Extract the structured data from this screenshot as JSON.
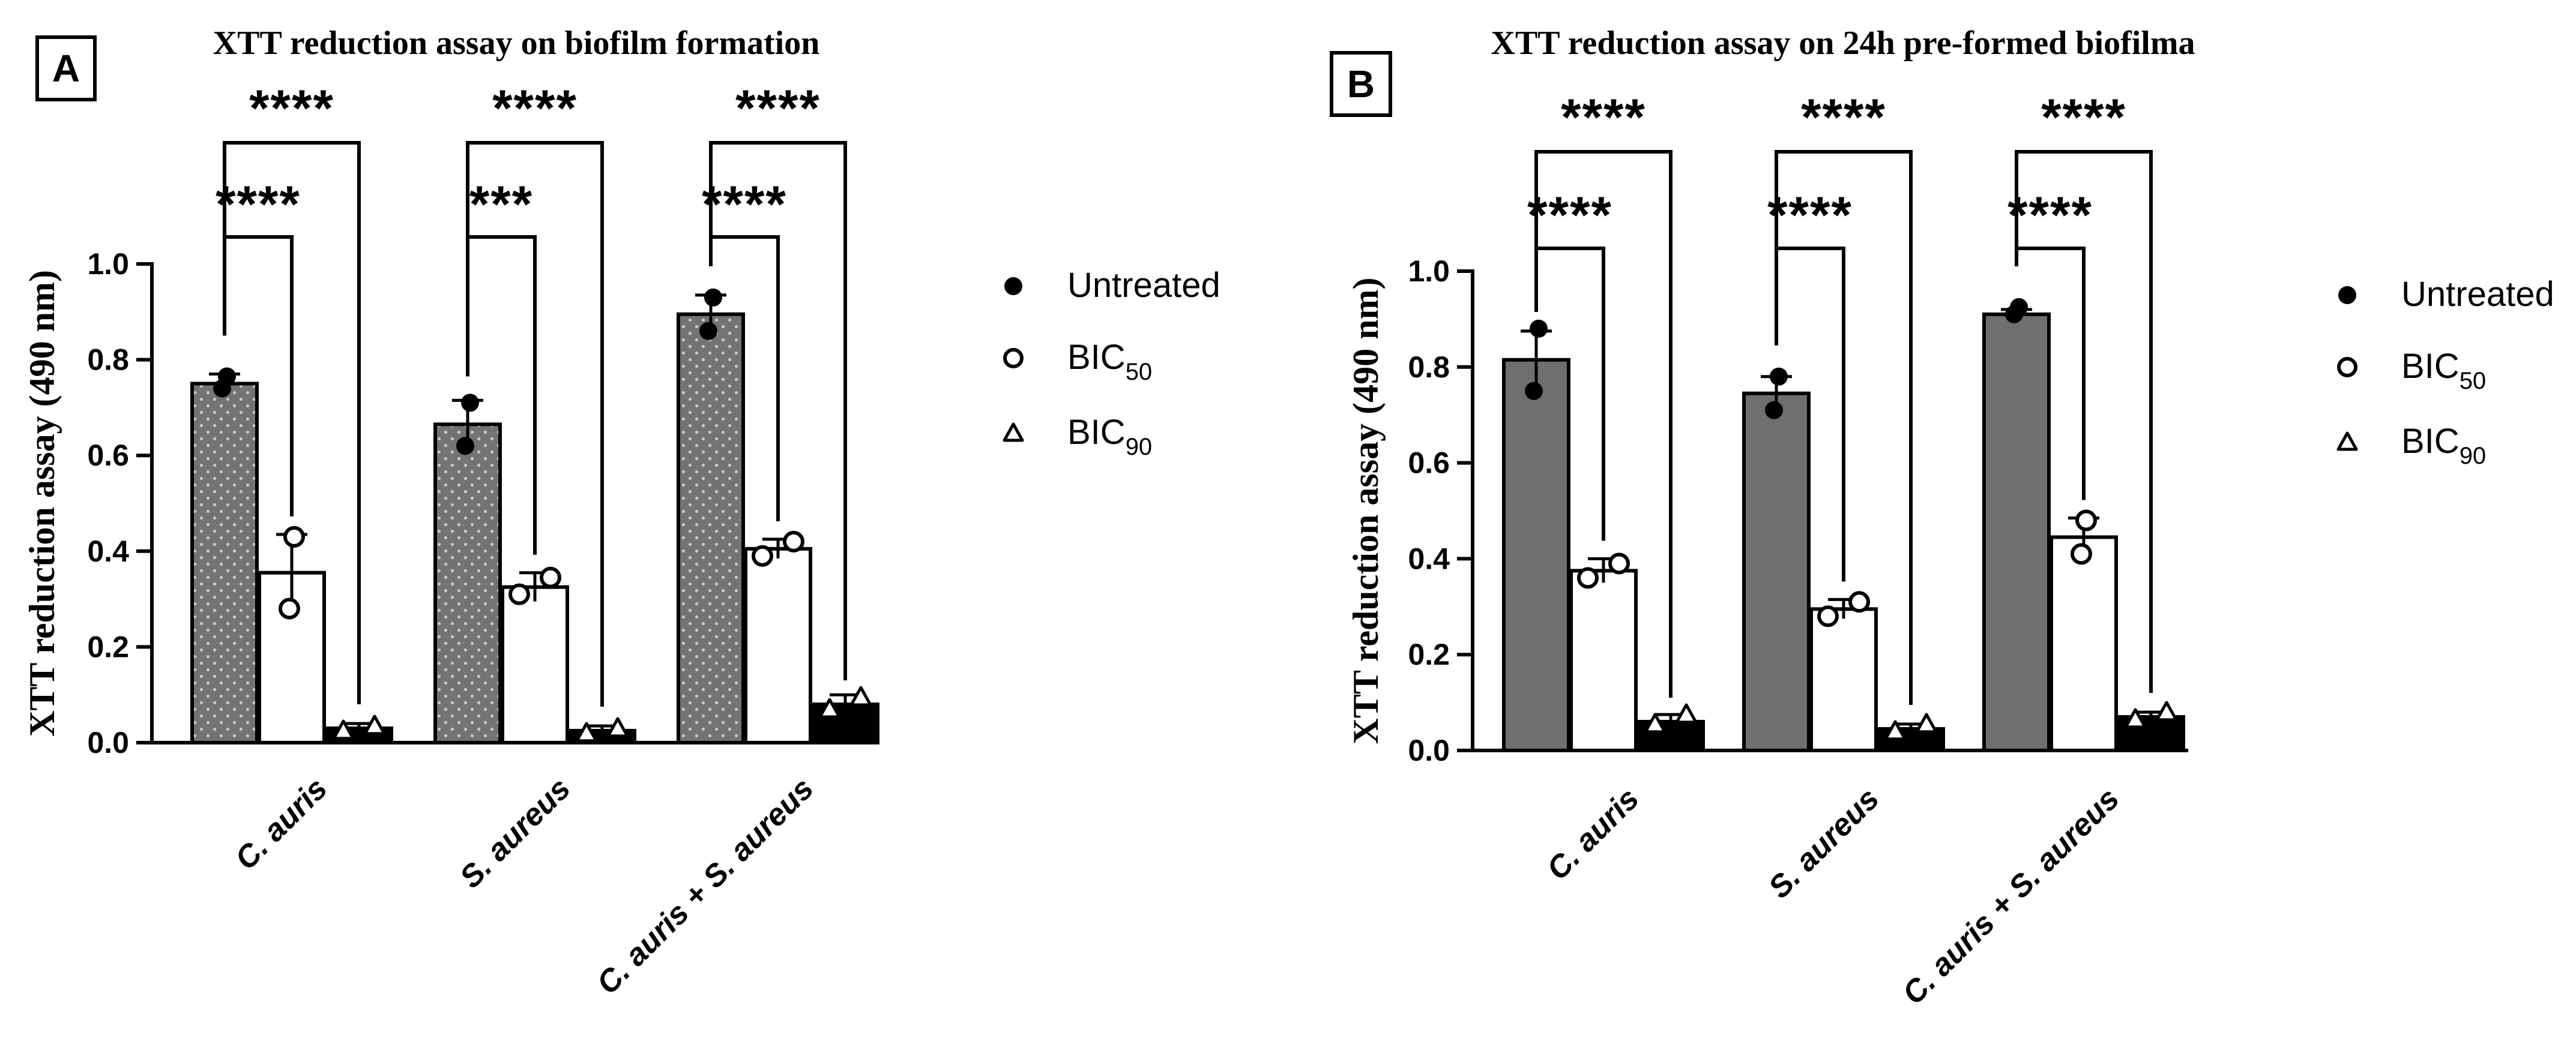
{
  "chart_data": [
    {
      "type": "bar",
      "panel": "A",
      "title": "XTT reduction assay on biofilm formation",
      "xlabel": "",
      "ylabel": "XTT reduction assay (490 nm)",
      "ylim": [
        0,
        1.0
      ],
      "yticks": [
        "0.0",
        "0.2",
        "0.4",
        "0.6",
        "0.8",
        "1.0"
      ],
      "categories": [
        "C. auris",
        "S. aureus",
        "C. auris + S. aureus"
      ],
      "series": [
        {
          "name": "Untreated",
          "values": [
            0.75,
            0.665,
            0.895
          ],
          "errors": [
            0.02,
            0.05,
            0.04
          ],
          "points": [
            [
              0.74,
              0.765
            ],
            [
              0.62,
              0.71
            ],
            [
              0.86,
              0.93
            ]
          ]
        },
        {
          "name": "BIC50",
          "values": [
            0.355,
            0.325,
            0.405
          ],
          "errors": [
            0.08,
            0.03,
            0.02
          ],
          "points": [
            [
              0.28,
              0.43
            ],
            [
              0.31,
              0.345
            ],
            [
              0.39,
              0.42
            ]
          ]
        },
        {
          "name": "BIC90",
          "values": [
            0.03,
            0.025,
            0.08
          ],
          "errors": [
            0.01,
            0.01,
            0.02
          ],
          "points": [
            [
              0.025,
              0.035
            ],
            [
              0.02,
              0.03
            ],
            [
              0.07,
              0.095
            ]
          ]
        }
      ],
      "significance": [
        {
          "category": "C. auris",
          "inner": "****",
          "outer": "****"
        },
        {
          "category": "S. aureus",
          "inner": "***",
          "outer": "****"
        },
        {
          "category": "C. auris + S. aureus",
          "inner": "****",
          "outer": "****"
        }
      ],
      "legend": [
        {
          "label": "Untreated",
          "sub": "",
          "marker": "filled-circle"
        },
        {
          "label": "BIC",
          "sub": "50",
          "marker": "open-circle"
        },
        {
          "label": "BIC",
          "sub": "90",
          "marker": "open-triangle"
        }
      ],
      "legend_position": "right",
      "bar_colors": [
        "#6f6f6f",
        "#ffffff",
        "#000000"
      ],
      "bar_pattern": "dotted"
    },
    {
      "type": "bar",
      "panel": "B",
      "title": "XTT reduction assay on 24h pre-formed biofilma",
      "xlabel": "",
      "ylabel": "XTT reduction assay (490 nm)",
      "ylim": [
        0,
        1.0
      ],
      "yticks": [
        "0.0",
        "0.2",
        "0.4",
        "0.6",
        "0.8",
        "1.0"
      ],
      "categories": [
        "C. auris",
        "S. aureus",
        "C. auris + S. aureus"
      ],
      "series": [
        {
          "name": "Untreated",
          "values": [
            0.815,
            0.745,
            0.91
          ],
          "errors": [
            0.06,
            0.035,
            0.01
          ],
          "points": [
            [
              0.75,
              0.88
            ],
            [
              0.71,
              0.78
            ],
            [
              0.91,
              0.925
            ]
          ]
        },
        {
          "name": "BIC50",
          "values": [
            0.375,
            0.295,
            0.445
          ],
          "errors": [
            0.025,
            0.02,
            0.04
          ],
          "points": [
            [
              0.36,
              0.39
            ],
            [
              0.28,
              0.31
            ],
            [
              0.41,
              0.48
            ]
          ]
        },
        {
          "name": "BIC90",
          "values": [
            0.06,
            0.045,
            0.07
          ],
          "errors": [
            0.015,
            0.01,
            0.01
          ],
          "points": [
            [
              0.055,
              0.075
            ],
            [
              0.04,
              0.055
            ],
            [
              0.065,
              0.08
            ]
          ]
        }
      ],
      "significance": [
        {
          "category": "C. auris",
          "inner": "****",
          "outer": "****"
        },
        {
          "category": "S. aureus",
          "inner": "****",
          "outer": "****"
        },
        {
          "category": "C. auris + S. aureus",
          "inner": "****",
          "outer": "****"
        }
      ],
      "legend": [
        {
          "label": "Untreated",
          "sub": "",
          "marker": "filled-circle"
        },
        {
          "label": "BIC",
          "sub": "50",
          "marker": "open-circle"
        },
        {
          "label": "BIC",
          "sub": "90",
          "marker": "open-triangle"
        }
      ],
      "legend_position": "right",
      "bar_colors": [
        "#6f6f6f",
        "#ffffff",
        "#000000"
      ],
      "bar_pattern": "solid"
    }
  ]
}
